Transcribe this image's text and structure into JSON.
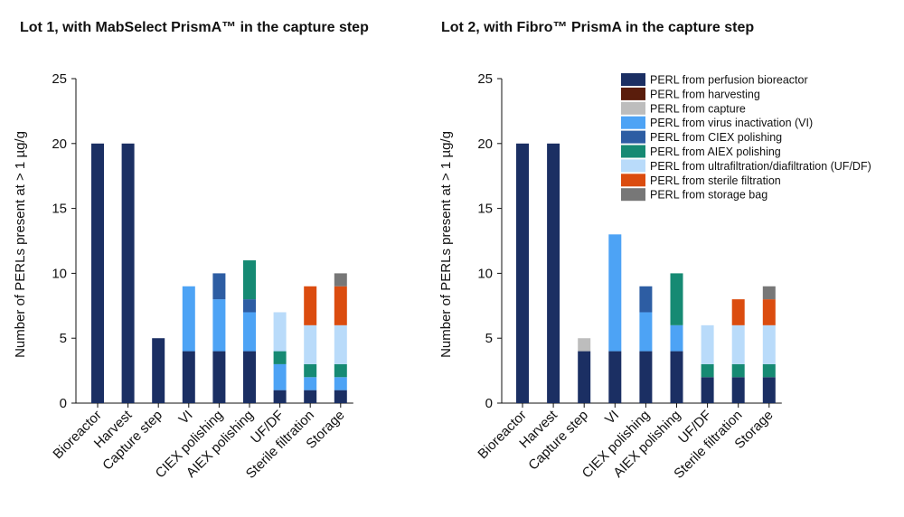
{
  "chart_data": [
    {
      "type": "bar",
      "stacked": true,
      "title": "Lot 1, with MabSelect PrismA™ in the capture step",
      "ylabel": "Number of PERLs present at > 1 µg/g",
      "ylim": [
        0,
        25
      ],
      "yticks": [
        0,
        5,
        10,
        15,
        20,
        25
      ],
      "grid": false,
      "legend": "none",
      "categories": [
        "Bioreactor",
        "Harvest",
        "Capture step",
        "VI",
        "CIEX polishing",
        "AIEX polishing",
        "UF/DF",
        "Sterile filtration",
        "Storage"
      ],
      "series": [
        {
          "name": "PERL from perfusion bioreactor",
          "values": [
            20,
            20,
            5,
            4,
            4,
            4,
            1,
            1,
            1
          ]
        },
        {
          "name": "PERL from harvesting",
          "values": [
            0,
            0,
            0,
            0,
            0,
            0,
            0,
            0,
            0
          ]
        },
        {
          "name": "PERL from capture",
          "values": [
            0,
            0,
            0,
            0,
            0,
            0,
            0,
            0,
            0
          ]
        },
        {
          "name": "PERL from virus inactivation (VI)",
          "values": [
            0,
            0,
            0,
            5,
            4,
            3,
            2,
            1,
            1
          ]
        },
        {
          "name": "PERL from CIEX polishing",
          "values": [
            0,
            0,
            0,
            0,
            2,
            1,
            0,
            0,
            0
          ]
        },
        {
          "name": "PERL from AIEX polishing",
          "values": [
            0,
            0,
            0,
            0,
            0,
            3,
            1,
            1,
            1
          ]
        },
        {
          "name": "PERL from ultrafiltration/diafiltration (UF/DF)",
          "values": [
            0,
            0,
            0,
            0,
            0,
            0,
            3,
            3,
            3
          ]
        },
        {
          "name": "PERL from sterile filtration",
          "values": [
            0,
            0,
            0,
            0,
            0,
            0,
            0,
            3,
            3
          ]
        },
        {
          "name": "PERL from storage bag",
          "values": [
            0,
            0,
            0,
            0,
            0,
            0,
            0,
            0,
            1
          ]
        }
      ]
    },
    {
      "type": "bar",
      "stacked": true,
      "title": "Lot 2, with Fibro™ PrismA in the capture step",
      "ylabel": "Number of PERLs present at > 1 µg/g",
      "ylim": [
        0,
        25
      ],
      "yticks": [
        0,
        5,
        10,
        15,
        20,
        25
      ],
      "grid": false,
      "legend": "top-right",
      "categories": [
        "Bioreactor",
        "Harvest",
        "Capture step",
        "VI",
        "CIEX polishing",
        "AIEX polishing",
        "UF/DF",
        "Sterile filtration",
        "Storage"
      ],
      "series": [
        {
          "name": "PERL from perfusion bioreactor",
          "values": [
            20,
            20,
            4,
            4,
            4,
            4,
            2,
            2,
            2
          ]
        },
        {
          "name": "PERL from harvesting",
          "values": [
            0,
            0,
            0,
            0,
            0,
            0,
            0,
            0,
            0
          ]
        },
        {
          "name": "PERL from capture",
          "values": [
            0,
            0,
            1,
            0,
            0,
            0,
            0,
            0,
            0
          ]
        },
        {
          "name": "PERL from virus inactivation (VI)",
          "values": [
            0,
            0,
            0,
            9,
            3,
            2,
            0,
            0,
            0
          ]
        },
        {
          "name": "PERL from CIEX polishing",
          "values": [
            0,
            0,
            0,
            0,
            2,
            0,
            0,
            0,
            0
          ]
        },
        {
          "name": "PERL from AIEX polishing",
          "values": [
            0,
            0,
            0,
            0,
            0,
            4,
            1,
            1,
            1
          ]
        },
        {
          "name": "PERL from ultrafiltration/diafiltration (UF/DF)",
          "values": [
            0,
            0,
            0,
            0,
            0,
            0,
            3,
            3,
            3
          ]
        },
        {
          "name": "PERL from sterile filtration",
          "values": [
            0,
            0,
            0,
            0,
            0,
            0,
            0,
            2,
            2
          ]
        },
        {
          "name": "PERL from storage bag",
          "values": [
            0,
            0,
            0,
            0,
            0,
            0,
            0,
            0,
            1
          ]
        }
      ]
    }
  ],
  "series_colors": [
    "#1b2f63",
    "#5a1d0c",
    "#bdbdbd",
    "#4da3f5",
    "#2d5da3",
    "#168a73",
    "#b9dbfa",
    "#db4c0f",
    "#777777"
  ]
}
